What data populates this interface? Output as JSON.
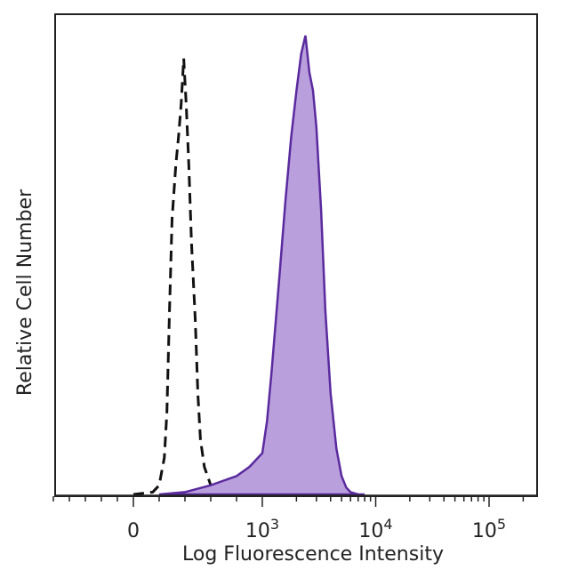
{
  "chart_data": {
    "type": "area",
    "title": "",
    "xlabel": "Log Fluorescence Intensity",
    "ylabel": "Relative Cell Number",
    "x_scale": "biexponential",
    "xlim": [
      -1000,
      250000
    ],
    "ylim": [
      0,
      100
    ],
    "grid": false,
    "legend": "none",
    "x_ticks": [
      {
        "value": 0,
        "label": "0"
      },
      {
        "value": 1000,
        "label": "10",
        "exp": "3"
      },
      {
        "value": 10000,
        "label": "10",
        "exp": "4"
      },
      {
        "value": 100000,
        "label": "10",
        "exp": "5"
      }
    ],
    "series": [
      {
        "style": "dashed-outline",
        "color": "#111111",
        "x": [
          0,
          150,
          200,
          240,
          260,
          280,
          300,
          330,
          350,
          370,
          390,
          410,
          430,
          450,
          480,
          500,
          520,
          550,
          600,
          650,
          800,
          1000
        ],
        "y": [
          0,
          0.5,
          2,
          8,
          18,
          40,
          60,
          72,
          78,
          85,
          95,
          85,
          72,
          55,
          38,
          22,
          12,
          6,
          2,
          1,
          0,
          0
        ]
      },
      {
        "style": "filled",
        "color": "#5a2a9e",
        "fill": "#b9a0dc",
        "x": [
          200,
          400,
          600,
          700,
          800,
          900,
          1000,
          1100,
          1200,
          1400,
          1600,
          1800,
          2000,
          2200,
          2400,
          2600,
          2800,
          3000,
          3300,
          3600,
          4000,
          4500,
          5000,
          5500,
          6000,
          7000,
          8000
        ],
        "y": [
          0,
          0.5,
          2,
          3,
          4,
          6,
          9,
          16,
          26,
          46,
          64,
          78,
          88,
          96,
          100,
          92,
          88,
          80,
          62,
          40,
          22,
          10,
          4,
          1.5,
          0.5,
          0,
          0
        ]
      }
    ]
  }
}
